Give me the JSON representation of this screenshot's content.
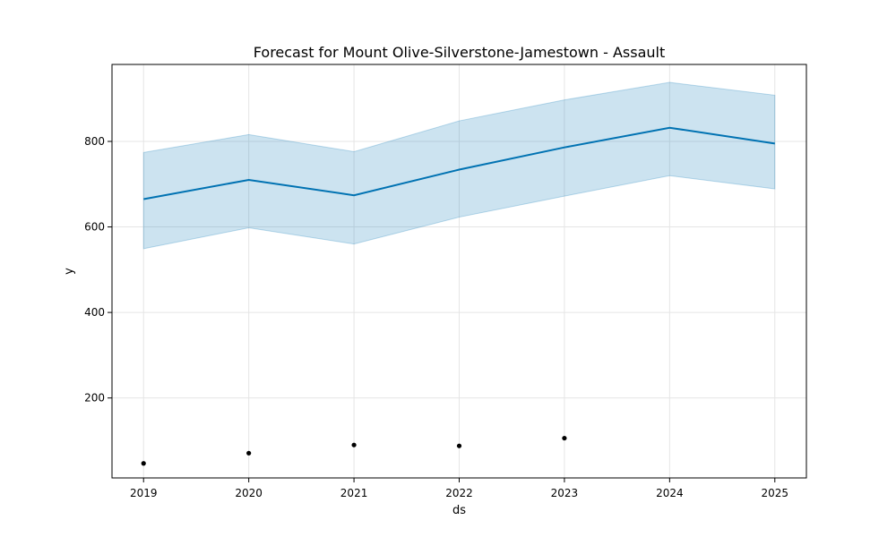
{
  "chart_data": {
    "type": "line",
    "title": "Forecast for Mount Olive-Silverstone-Jamestown - Assault",
    "xlabel": "ds",
    "ylabel": "y",
    "x": [
      "2019",
      "2020",
      "2021",
      "2022",
      "2023",
      "2024",
      "2025"
    ],
    "xlim": [
      2018.7,
      2025.3
    ],
    "ylim": [
      13,
      980
    ],
    "xticks": [
      "2019",
      "2020",
      "2021",
      "2022",
      "2023",
      "2024",
      "2025"
    ],
    "yticks": [
      200,
      400,
      600,
      800
    ],
    "grid": true,
    "forecast": {
      "yhat": [
        665,
        710,
        674,
        734,
        786,
        832,
        795
      ],
      "yhat_lower": [
        549,
        598,
        560,
        623,
        672,
        720,
        689
      ],
      "yhat_upper": [
        774,
        816,
        776,
        848,
        897,
        938,
        908
      ]
    },
    "observed": {
      "x": [
        "2019",
        "2020",
        "2021",
        "2022",
        "2023"
      ],
      "y": [
        47,
        71,
        90,
        88,
        106
      ]
    },
    "colors": {
      "forecast_line": "#0072B2",
      "interval_fill": "#0072B2",
      "observed_points": "#000000",
      "grid": "#e5e5e5"
    }
  }
}
